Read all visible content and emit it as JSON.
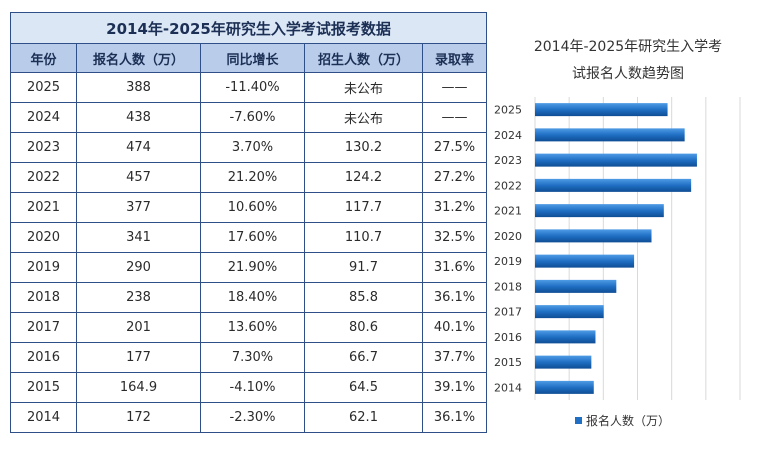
{
  "table": {
    "title": "2014年-2025年研究生入学考试报考数据",
    "headers": [
      "年份",
      "报名人数（万）",
      "同比增长",
      "招生人数（万）",
      "录取率"
    ],
    "rows": [
      [
        "2025",
        "388",
        "-11.40%",
        "未公布",
        "——"
      ],
      [
        "2024",
        "438",
        "-7.60%",
        "未公布",
        "——"
      ],
      [
        "2023",
        "474",
        "3.70%",
        "130.2",
        "27.5%"
      ],
      [
        "2022",
        "457",
        "21.20%",
        "124.2",
        "27.2%"
      ],
      [
        "2021",
        "377",
        "10.60%",
        "117.7",
        "31.2%"
      ],
      [
        "2020",
        "341",
        "17.60%",
        "110.7",
        "32.5%"
      ],
      [
        "2019",
        "290",
        "21.90%",
        "91.7",
        "31.6%"
      ],
      [
        "2018",
        "238",
        "18.40%",
        "85.8",
        "36.1%"
      ],
      [
        "2017",
        "201",
        "13.60%",
        "80.6",
        "40.1%"
      ],
      [
        "2016",
        "177",
        "7.30%",
        "66.7",
        "37.7%"
      ],
      [
        "2015",
        "164.9",
        "-4.10%",
        "64.5",
        "39.1%"
      ],
      [
        "2014",
        "172",
        "-2.30%",
        "62.1",
        "36.1%"
      ]
    ]
  },
  "chart_data": {
    "type": "bar",
    "orientation": "horizontal",
    "title_line1": "2014年-2025年研究生入学考",
    "title_line2": "试报名人数趋势图",
    "categories": [
      "2025",
      "2024",
      "2023",
      "2022",
      "2021",
      "2020",
      "2019",
      "2018",
      "2017",
      "2016",
      "2015",
      "2014"
    ],
    "series": [
      {
        "name": "报名人数（万）",
        "values": [
          388,
          438,
          474,
          457,
          377,
          341,
          290,
          238,
          201,
          177,
          164.9,
          172
        ]
      }
    ],
    "xlim": [
      0,
      600
    ],
    "grid": true,
    "legend": "bottom",
    "colors": {
      "bar": "#1f6fc4",
      "bar_light": "#4f9be6",
      "bar_dark": "#0e4d94",
      "grid": "#d9d9d9"
    }
  }
}
